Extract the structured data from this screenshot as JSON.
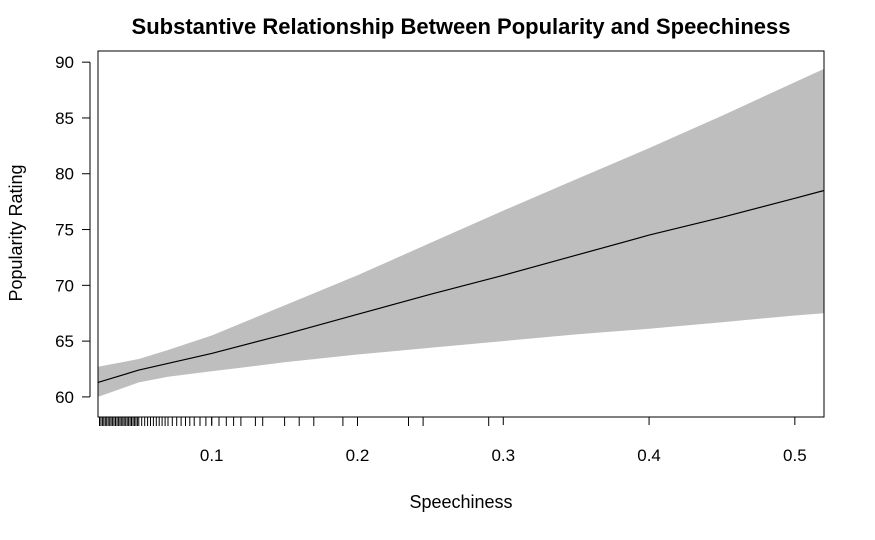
{
  "chart_data": {
    "type": "line",
    "title": "Substantive Relationship Between Popularity and Speechiness",
    "xlabel": "Speechiness",
    "ylabel": "Popularity Rating",
    "xlim": [
      0.022,
      0.52
    ],
    "ylim": [
      58.2,
      91
    ],
    "x_ticks": [
      0.1,
      0.2,
      0.3,
      0.4,
      0.5
    ],
    "x_tick_labels": [
      "0.1",
      "0.2",
      "0.3",
      "0.4",
      "0.5"
    ],
    "y_ticks": [
      60,
      65,
      70,
      75,
      80,
      85,
      90
    ],
    "y_tick_labels": [
      "60",
      "65",
      "70",
      "75",
      "80",
      "85",
      "90"
    ],
    "grid": false,
    "series": [
      {
        "role": "fit",
        "x": [
          0.022,
          0.05,
          0.1,
          0.15,
          0.2,
          0.25,
          0.3,
          0.35,
          0.4,
          0.45,
          0.5,
          0.52
        ],
        "y": [
          61.3,
          62.4,
          63.9,
          65.6,
          67.4,
          69.2,
          70.9,
          72.7,
          74.5,
          76.1,
          77.8,
          78.5
        ]
      },
      {
        "role": "ci_upper",
        "x": [
          0.022,
          0.05,
          0.07,
          0.1,
          0.15,
          0.2,
          0.25,
          0.3,
          0.35,
          0.4,
          0.45,
          0.5,
          0.52
        ],
        "y": [
          62.7,
          63.4,
          64.2,
          65.5,
          68.2,
          70.9,
          73.8,
          76.7,
          79.5,
          82.3,
          85.2,
          88.2,
          89.4
        ]
      },
      {
        "role": "ci_lower",
        "x": [
          0.022,
          0.05,
          0.07,
          0.1,
          0.15,
          0.2,
          0.25,
          0.3,
          0.35,
          0.4,
          0.45,
          0.5,
          0.52
        ],
        "y": [
          60.0,
          61.3,
          61.8,
          62.3,
          63.1,
          63.8,
          64.4,
          65.0,
          65.6,
          66.1,
          66.7,
          67.3,
          67.5
        ]
      }
    ],
    "rug_x": [
      0.023,
      0.024,
      0.025,
      0.026,
      0.027,
      0.028,
      0.029,
      0.03,
      0.031,
      0.032,
      0.033,
      0.034,
      0.035,
      0.036,
      0.037,
      0.038,
      0.039,
      0.04,
      0.041,
      0.042,
      0.043,
      0.044,
      0.045,
      0.046,
      0.047,
      0.048,
      0.049,
      0.05,
      0.052,
      0.054,
      0.056,
      0.058,
      0.06,
      0.062,
      0.064,
      0.066,
      0.068,
      0.07,
      0.073,
      0.076,
      0.079,
      0.082,
      0.085,
      0.088,
      0.092,
      0.096,
      0.1,
      0.105,
      0.11,
      0.115,
      0.12,
      0.13,
      0.135,
      0.15,
      0.16,
      0.17,
      0.19,
      0.2,
      0.235,
      0.245,
      0.29
    ],
    "colors": {
      "band": "#bebebe",
      "line": "#000000",
      "axis": "#000000"
    }
  }
}
